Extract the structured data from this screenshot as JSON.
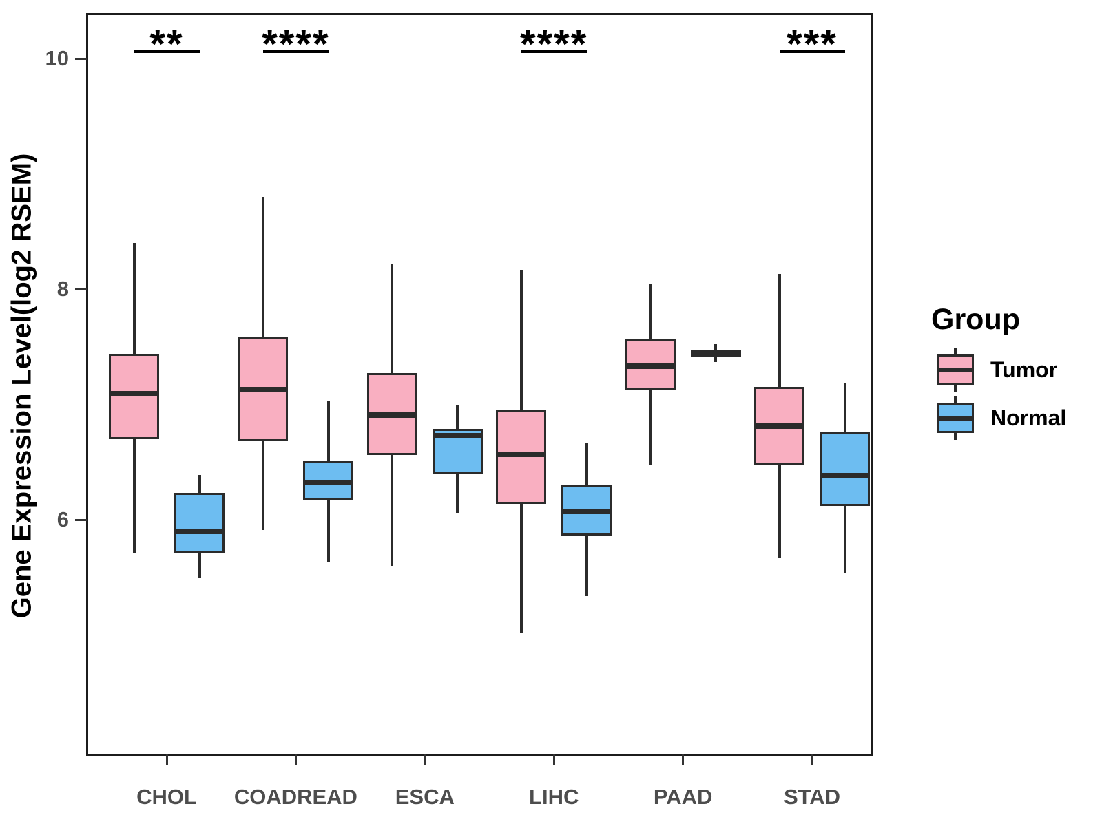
{
  "figure": {
    "background": "#FFFFFF"
  },
  "legend": {
    "title": "Group",
    "position": "right",
    "items": [
      {
        "label": "Tumor",
        "color": "#F9AFC1"
      },
      {
        "label": "Normal",
        "color": "#6DBDF1"
      }
    ]
  },
  "style": {
    "box_border_color": "#2B2B2B",
    "panel_border_color": "#1C1C1C",
    "tick_label_color": "#4D4D4D",
    "significance_color": "#000000"
  },
  "chart_data": {
    "type": "boxplot",
    "title": "",
    "xlabel": "",
    "ylabel": "Gene Expression Level(log2 RSEM)",
    "ylim": [
      4.0,
      10.4
    ],
    "yticks": [
      10,
      8,
      6
    ],
    "grid": "off",
    "legend_title": "Group",
    "categories": [
      "CHOL",
      "COADREAD",
      "ESCA",
      "LIHC",
      "PAAD",
      "STAD"
    ],
    "series": [
      {
        "name": "Tumor",
        "color": "#F9AFC1",
        "boxes": [
          {
            "category": "CHOL",
            "min": 5.71,
            "q1": 6.7,
            "median": 7.09,
            "q3": 7.44,
            "max": 8.4
          },
          {
            "category": "COADREAD",
            "min": 5.91,
            "q1": 6.68,
            "median": 7.13,
            "q3": 7.58,
            "max": 8.8
          },
          {
            "category": "ESCA",
            "min": 5.6,
            "q1": 6.56,
            "median": 6.91,
            "q3": 7.27,
            "max": 8.22
          },
          {
            "category": "LIHC",
            "min": 5.02,
            "q1": 6.14,
            "median": 6.57,
            "q3": 6.95,
            "max": 8.17
          },
          {
            "category": "PAAD",
            "min": 6.47,
            "q1": 7.12,
            "median": 7.33,
            "q3": 7.57,
            "max": 8.04
          },
          {
            "category": "STAD",
            "min": 5.67,
            "q1": 6.47,
            "median": 6.81,
            "q3": 7.15,
            "max": 8.13
          }
        ]
      },
      {
        "name": "Normal",
        "color": "#6DBDF1",
        "boxes": [
          {
            "category": "CHOL",
            "min": 5.49,
            "q1": 5.71,
            "median": 5.9,
            "q3": 6.23,
            "max": 6.39
          },
          {
            "category": "COADREAD",
            "min": 5.63,
            "q1": 6.17,
            "median": 6.32,
            "q3": 6.51,
            "max": 7.03
          },
          {
            "category": "ESCA",
            "min": 6.06,
            "q1": 6.4,
            "median": 6.73,
            "q3": 6.79,
            "max": 6.99
          },
          {
            "category": "LIHC",
            "min": 5.34,
            "q1": 5.86,
            "median": 6.07,
            "q3": 6.3,
            "max": 6.66
          },
          {
            "category": "PAAD",
            "min": 7.37,
            "q1": 7.42,
            "median": 7.44,
            "q3": 7.47,
            "max": 7.52
          },
          {
            "category": "STAD",
            "min": 5.54,
            "q1": 6.12,
            "median": 6.38,
            "q3": 6.76,
            "max": 7.19
          }
        ]
      }
    ],
    "significance": [
      {
        "category": "CHOL",
        "label": "**"
      },
      {
        "category": "COADREAD",
        "label": "****"
      },
      {
        "category": "LIHC",
        "label": "****"
      },
      {
        "category": "STAD",
        "label": "***"
      }
    ]
  }
}
